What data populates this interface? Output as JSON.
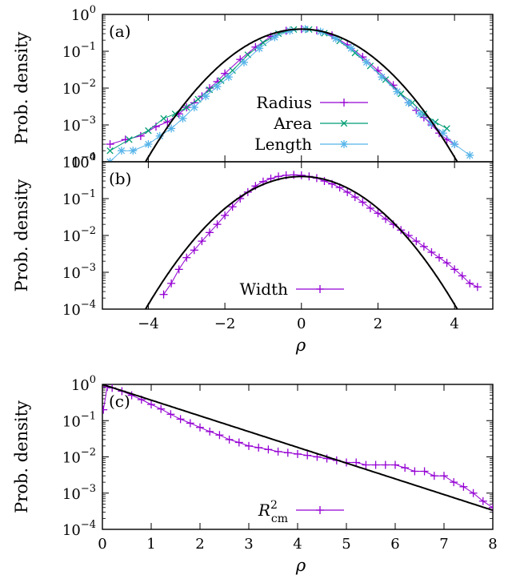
{
  "chart_data": [
    {
      "type": "scatter",
      "panel_label": "(a)",
      "ylabel": "Prob. density",
      "xlabel": "",
      "y_scale": "log",
      "xlim": [
        -5.2,
        5.0
      ],
      "ylim": [
        0.0001,
        1
      ],
      "x_ticks": [
        -4,
        -2,
        0,
        2,
        4
      ],
      "x_tick_labels": [
        "",
        "",
        "",
        "",
        ""
      ],
      "y_tick_values": [
        0.0001,
        0.001,
        0.01,
        0.1,
        1
      ],
      "y_tick_labels": [
        {
          "base": "10",
          "exp": "−4"
        },
        {
          "base": "10",
          "exp": "−3"
        },
        {
          "base": "10",
          "exp": "−2"
        },
        {
          "base": "10",
          "exp": "−1"
        },
        {
          "base": "10",
          "exp": "0"
        }
      ],
      "legend_position": "bottom-right",
      "series": [
        {
          "name": "Radius",
          "marker": "plus",
          "color": "#9400d3",
          "x": [
            -5.0,
            -4.6,
            -4.2,
            -3.8,
            -3.5,
            -3.2,
            -3.0,
            -2.8,
            -2.6,
            -2.4,
            -2.2,
            -2.0,
            -1.6,
            -1.2,
            -0.8,
            -0.4,
            0.0,
            0.4,
            0.8,
            1.2,
            1.6,
            2.0,
            2.4,
            2.8,
            3.0,
            3.2,
            3.4,
            3.6,
            3.8,
            4.0
          ],
          "y": [
            0.0003,
            0.0004,
            0.0005,
            0.0009,
            0.0012,
            0.002,
            0.003,
            0.004,
            0.006,
            0.01,
            0.015,
            0.025,
            0.06,
            0.13,
            0.25,
            0.36,
            0.4,
            0.37,
            0.27,
            0.15,
            0.07,
            0.03,
            0.012,
            0.004,
            0.0025,
            0.0016,
            0.001,
            0.0006,
            0.0004,
            0.0003
          ]
        },
        {
          "name": "Area",
          "marker": "cross",
          "color": "#009e73",
          "x": [
            -5.0,
            -4.5,
            -4.0,
            -3.6,
            -3.3,
            -3.0,
            -2.7,
            -2.4,
            -2.1,
            -1.8,
            -1.4,
            -1.0,
            -0.6,
            -0.2,
            0.2,
            0.6,
            1.0,
            1.4,
            1.8,
            2.2,
            2.6,
            2.9,
            3.2,
            3.5,
            3.8
          ],
          "y": [
            0.0002,
            0.0004,
            0.0007,
            0.0015,
            0.002,
            0.003,
            0.005,
            0.009,
            0.016,
            0.03,
            0.08,
            0.17,
            0.3,
            0.39,
            0.39,
            0.31,
            0.19,
            0.09,
            0.04,
            0.017,
            0.007,
            0.004,
            0.002,
            0.0012,
            0.0008
          ]
        },
        {
          "name": "Length",
          "marker": "star",
          "color": "#56b4e9",
          "x": [
            -5.0,
            -4.7,
            -4.4,
            -4.0,
            -3.7,
            -3.4,
            -3.1,
            -2.8,
            -2.5,
            -2.2,
            -1.9,
            -1.5,
            -1.1,
            -0.7,
            -0.3,
            0.1,
            0.5,
            0.9,
            1.3,
            1.7,
            2.1,
            2.5,
            2.8,
            3.1,
            3.4,
            3.7,
            4.0,
            4.4
          ],
          "y": [
            0.0001,
            0.0002,
            0.0002,
            0.0003,
            0.0005,
            0.0008,
            0.0015,
            0.003,
            0.006,
            0.011,
            0.02,
            0.05,
            0.12,
            0.24,
            0.36,
            0.4,
            0.34,
            0.22,
            0.12,
            0.05,
            0.02,
            0.008,
            0.004,
            0.002,
            0.0011,
            0.0006,
            0.0003,
            0.00015
          ]
        }
      ],
      "fit_curve": {
        "kind": "gaussian",
        "mean": 0,
        "sigma": 1
      }
    },
    {
      "type": "scatter",
      "panel_label": "(b)",
      "ylabel": "Prob. density",
      "xlabel": "ρ",
      "y_scale": "log",
      "xlim": [
        -5.2,
        5.0
      ],
      "ylim": [
        0.0001,
        1
      ],
      "x_ticks": [
        -4,
        -2,
        0,
        2,
        4
      ],
      "x_tick_labels": [
        "−4",
        "−2",
        "0",
        "2",
        "4"
      ],
      "y_tick_values": [
        0.0001,
        0.001,
        0.01,
        0.1,
        1
      ],
      "y_tick_labels": [
        {
          "base": "10",
          "exp": "−4"
        },
        {
          "base": "10",
          "exp": "−3"
        },
        {
          "base": "10",
          "exp": "−2"
        },
        {
          "base": "10",
          "exp": "−1"
        },
        {
          "base": "10",
          "exp": "0"
        }
      ],
      "legend_position": "bottom-right",
      "series": [
        {
          "name": "Width",
          "marker": "plus",
          "color": "#9400d3",
          "x": [
            -3.6,
            -3.4,
            -3.2,
            -3.0,
            -2.8,
            -2.6,
            -2.4,
            -2.2,
            -2.0,
            -1.8,
            -1.6,
            -1.4,
            -1.2,
            -1.0,
            -0.8,
            -0.6,
            -0.4,
            -0.2,
            0.0,
            0.2,
            0.4,
            0.6,
            0.8,
            1.0,
            1.2,
            1.4,
            1.6,
            1.8,
            2.0,
            2.2,
            2.4,
            2.6,
            2.8,
            3.0,
            3.2,
            3.4,
            3.6,
            3.8,
            4.0,
            4.2,
            4.4,
            4.6
          ],
          "y": [
            0.00025,
            0.0005,
            0.0012,
            0.0025,
            0.004,
            0.007,
            0.012,
            0.02,
            0.035,
            0.06,
            0.1,
            0.15,
            0.22,
            0.29,
            0.35,
            0.4,
            0.43,
            0.44,
            0.43,
            0.4,
            0.36,
            0.3,
            0.25,
            0.2,
            0.15,
            0.11,
            0.08,
            0.055,
            0.04,
            0.028,
            0.02,
            0.014,
            0.01,
            0.007,
            0.005,
            0.0035,
            0.0025,
            0.0018,
            0.0012,
            0.0008,
            0.0005,
            0.0004
          ]
        }
      ],
      "fit_curve": {
        "kind": "gaussian",
        "mean": 0,
        "sigma": 1
      }
    },
    {
      "type": "scatter",
      "panel_label": "(c)",
      "ylabel": "Prob. density",
      "xlabel": "ρ",
      "y_scale": "log",
      "xlim": [
        0,
        8
      ],
      "ylim": [
        0.0001,
        1
      ],
      "x_ticks": [
        0,
        1,
        2,
        3,
        4,
        5,
        6,
        7,
        8
      ],
      "x_tick_labels": [
        "0",
        "1",
        "2",
        "3",
        "4",
        "5",
        "6",
        "7",
        "8"
      ],
      "y_tick_values": [
        0.0001,
        0.001,
        0.01,
        0.1,
        1
      ],
      "y_tick_labels": [
        {
          "base": "10",
          "exp": "−4"
        },
        {
          "base": "10",
          "exp": "−3"
        },
        {
          "base": "10",
          "exp": "−2"
        },
        {
          "base": "10",
          "exp": "−1"
        },
        {
          "base": "10",
          "exp": "0"
        }
      ],
      "legend_position": "bottom-right",
      "series": [
        {
          "name": "R2cm",
          "label_base": "R",
          "label_sup": "2",
          "label_sub": "cm",
          "marker": "plus",
          "color": "#9400d3",
          "x": [
            0.02,
            0.1,
            0.2,
            0.4,
            0.6,
            0.8,
            1.0,
            1.2,
            1.4,
            1.6,
            1.8,
            2.0,
            2.2,
            2.4,
            2.6,
            2.8,
            3.0,
            3.2,
            3.4,
            3.6,
            3.8,
            4.0,
            4.2,
            4.4,
            4.6,
            4.8,
            5.0,
            5.2,
            5.4,
            5.6,
            5.8,
            6.0,
            6.2,
            6.4,
            6.6,
            6.8,
            7.0,
            7.2,
            7.4,
            7.6,
            7.8,
            8.0
          ],
          "y": [
            0.2,
            0.85,
            0.8,
            0.65,
            0.5,
            0.38,
            0.28,
            0.21,
            0.15,
            0.11,
            0.085,
            0.065,
            0.05,
            0.04,
            0.03,
            0.025,
            0.02,
            0.018,
            0.016,
            0.014,
            0.013,
            0.012,
            0.011,
            0.01,
            0.009,
            0.008,
            0.007,
            0.007,
            0.006,
            0.006,
            0.006,
            0.006,
            0.005,
            0.004,
            0.004,
            0.003,
            0.003,
            0.002,
            0.0015,
            0.001,
            0.0006,
            0.0004
          ]
        }
      ],
      "fit_curve": {
        "kind": "exponential",
        "amplitude": 1,
        "rate": 1
      }
    }
  ]
}
